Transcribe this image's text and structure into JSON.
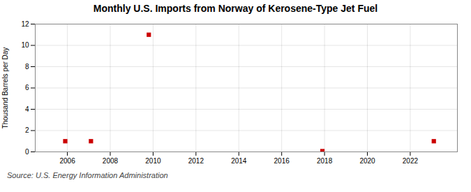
{
  "chart_data": {
    "type": "scatter",
    "title": "Monthly U.S. Imports from Norway of Kerosene-Type Jet Fuel",
    "ylabel": "Thousand Barrels per Day",
    "source": "Source: U.S. Energy Information Administration",
    "x": [
      2005.9,
      2007.1,
      2009.8,
      2017.9,
      2023.1
    ],
    "values": [
      1.0,
      1.0,
      11.0,
      0.07,
      1.0
    ],
    "color": "#cc0000",
    "marker": "square",
    "xlim": [
      2004.5,
      2024.2
    ],
    "xticks": [
      2006,
      2008,
      2010,
      2012,
      2014,
      2016,
      2018,
      2020,
      2022
    ],
    "ylim": [
      0,
      12
    ],
    "yticks": [
      0,
      2,
      4,
      6,
      8,
      10,
      12
    ],
    "grid": true
  }
}
